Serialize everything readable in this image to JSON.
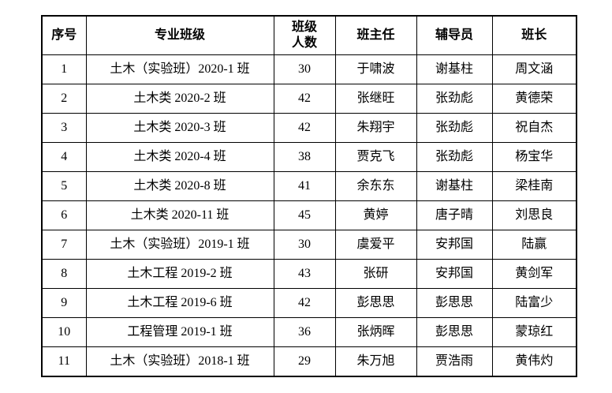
{
  "table": {
    "headers": {
      "no": "序号",
      "class_name": "专业班级",
      "size": "班级人数",
      "teacher": "班主任",
      "counselor": "辅导员",
      "monitor": "班长"
    },
    "rows": [
      {
        "no": "1",
        "class_name": "土木（实验班）2020-1 班",
        "size": "30",
        "teacher": "于啸波",
        "counselor": "谢基柱",
        "monitor": "周文涵"
      },
      {
        "no": "2",
        "class_name": "土木类 2020-2 班",
        "size": "42",
        "teacher": "张继旺",
        "counselor": "张劲彪",
        "monitor": "黄德荣"
      },
      {
        "no": "3",
        "class_name": "土木类 2020-3 班",
        "size": "42",
        "teacher": "朱翔宇",
        "counselor": "张劲彪",
        "monitor": "祝自杰"
      },
      {
        "no": "4",
        "class_name": "土木类 2020-4 班",
        "size": "38",
        "teacher": "贾克飞",
        "counselor": "张劲彪",
        "monitor": "杨宝华"
      },
      {
        "no": "5",
        "class_name": "土木类 2020-8 班",
        "size": "41",
        "teacher": "余东东",
        "counselor": "谢基柱",
        "monitor": "梁桂南"
      },
      {
        "no": "6",
        "class_name": "土木类 2020-11 班",
        "size": "45",
        "teacher": "黄婷",
        "counselor": "唐子晴",
        "monitor": "刘思良"
      },
      {
        "no": "7",
        "class_name": "土木（实验班）2019-1 班",
        "size": "30",
        "teacher": "虞爱平",
        "counselor": "安邦国",
        "monitor": "陆赢"
      },
      {
        "no": "8",
        "class_name": "土木工程 2019-2 班",
        "size": "43",
        "teacher": "张研",
        "counselor": "安邦国",
        "monitor": "黄剑军"
      },
      {
        "no": "9",
        "class_name": "土木工程 2019-6 班",
        "size": "42",
        "teacher": "彭思思",
        "counselor": "彭思思",
        "monitor": "陆富少"
      },
      {
        "no": "10",
        "class_name": "工程管理 2019-1 班",
        "size": "36",
        "teacher": "张炳晖",
        "counselor": "彭思思",
        "monitor": "蒙琼红"
      },
      {
        "no": "11",
        "class_name": "土木（实验班）2018-1 班",
        "size": "29",
        "teacher": "朱万旭",
        "counselor": "贾浩雨",
        "monitor": "黄伟灼"
      }
    ],
    "colors": {
      "border": "#000000",
      "text": "#000000",
      "background": "#ffffff"
    }
  }
}
